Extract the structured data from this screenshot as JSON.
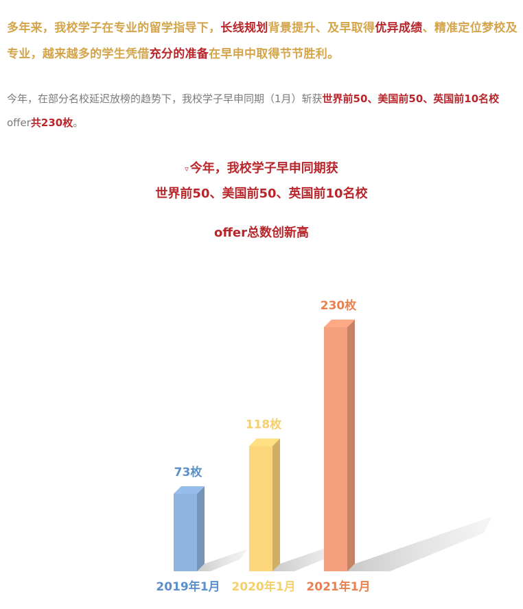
{
  "intro": {
    "segments": [
      {
        "text": "多年来，我校学子在专业的留学指导下，",
        "highlight": false
      },
      {
        "text": "长线规划",
        "highlight": true
      },
      {
        "text": "背景提升、及早取得",
        "highlight": false
      },
      {
        "text": "优异成绩",
        "highlight": true
      },
      {
        "text": "、精准定位梦校及专业，越来越多的学生凭借",
        "highlight": false
      },
      {
        "text": "充分的准备",
        "highlight": true
      },
      {
        "text": "在早申中取得节节胜利。",
        "highlight": false
      }
    ]
  },
  "summary": {
    "segments": [
      {
        "text": "今年，在部分名校延迟放榜的趋势下，我校学子早申同期（1月）斩获",
        "highlight": false
      },
      {
        "text": "世界前50、美国前50、英国前10名校",
        "highlight": true
      },
      {
        "text": "offer",
        "highlight": false
      },
      {
        "text": "共230枚",
        "highlight": true
      },
      {
        "text": "。",
        "highlight": false
      }
    ]
  },
  "heading": {
    "marker": "▿",
    "line1": "今年，我校学子早申同期获",
    "line2": "世界前50、美国前50、英国前10名校",
    "line3": "offer总数创新高"
  },
  "colors": {
    "accent_gold": "#d4a44a",
    "accent_red": "#b8262b",
    "body_gray": "#7a7a7a"
  },
  "chart_data": {
    "type": "bar",
    "style": "3d",
    "title": "",
    "xlabel": "",
    "ylabel": "",
    "ylim": [
      0,
      230
    ],
    "grid": false,
    "categories": [
      "2019年1月",
      "2020年1月",
      "2021年1月"
    ],
    "values": [
      73,
      118,
      230
    ],
    "data_labels": [
      "73枚",
      "118枚",
      "230枚"
    ],
    "colors": [
      "#8fb4e0",
      "#fdd57a",
      "#f4a07e"
    ],
    "label_colors": [
      "#5b8fc9",
      "#f4cf6a",
      "#e8804f"
    ]
  }
}
